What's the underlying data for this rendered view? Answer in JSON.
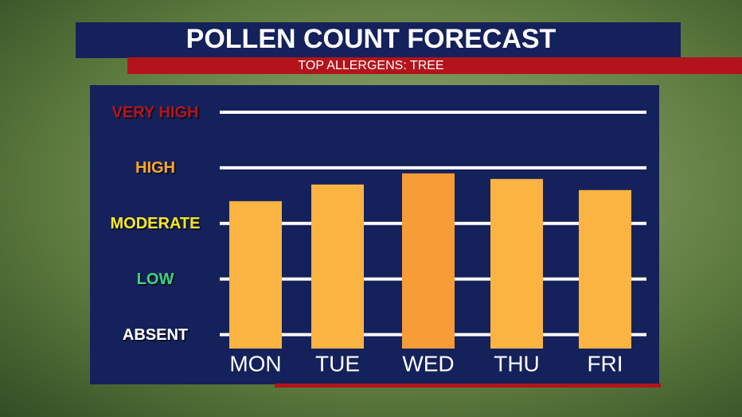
{
  "chart_data": {
    "type": "bar",
    "title": "POLLEN COUNT FORECAST",
    "subtitle": "TOP ALLERGENS: TREE",
    "categories": [
      "MON",
      "TUE",
      "WED",
      "THU",
      "FRI"
    ],
    "values": [
      2.4,
      2.7,
      2.9,
      2.8,
      2.6
    ],
    "colors": [
      "#fbb342",
      "#fbb342",
      "#f89c38",
      "#fbb342",
      "#fbb342"
    ],
    "ylim": [
      -0.25,
      4
    ],
    "yticks": [
      {
        "value": 0,
        "label": "ABSENT"
      },
      {
        "value": 1,
        "label": "LOW"
      },
      {
        "value": 2,
        "label": "MODERATE"
      },
      {
        "value": 3,
        "label": "HIGH"
      },
      {
        "value": 4,
        "label": "VERY HIGH"
      }
    ],
    "ytick_colors": [
      "#ffffff",
      "#3fcf7d",
      "#f4e624",
      "#f8a52e",
      "#b3141c"
    ],
    "grid": true
  }
}
